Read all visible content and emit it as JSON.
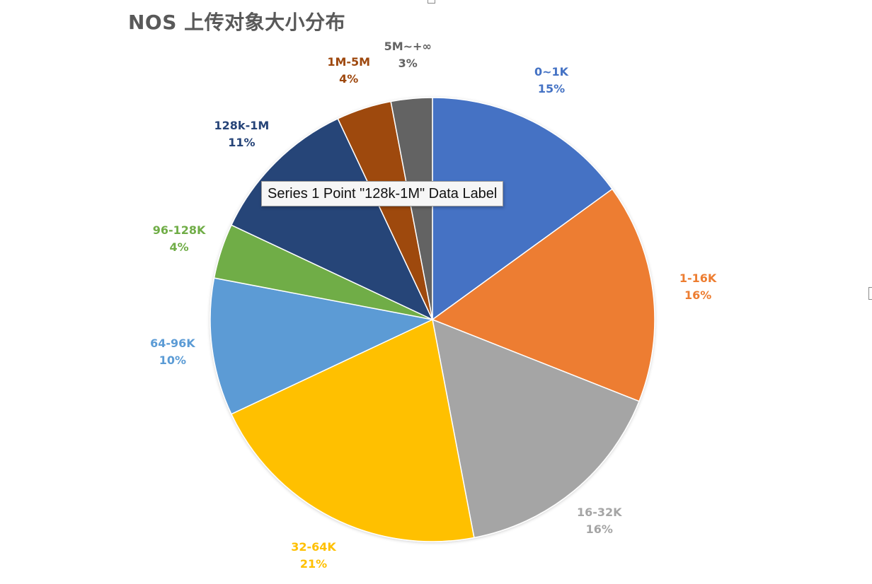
{
  "chart_data": {
    "type": "pie",
    "title": "NOS 上传对象大小分布",
    "series_name": "Series 1",
    "slices": [
      {
        "label": "0~1K",
        "value": 15,
        "display": "15%",
        "color": "#4472C4"
      },
      {
        "label": "1-16K",
        "value": 16,
        "display": "16%",
        "color": "#ED7D31"
      },
      {
        "label": "16-32K",
        "value": 16,
        "display": "16%",
        "color": "#A5A5A5"
      },
      {
        "label": "32-64K",
        "value": 21,
        "display": "21%",
        "color": "#FFC000"
      },
      {
        "label": "64-96K",
        "value": 10,
        "display": "10%",
        "color": "#5B9BD5"
      },
      {
        "label": "96-128K",
        "value": 4,
        "display": "4%",
        "color": "#70AD47"
      },
      {
        "label": "128k-1M",
        "value": 11,
        "display": "11%",
        "color": "#264478"
      },
      {
        "label": "1M-5M",
        "value": 4,
        "display": "4%",
        "color": "#9E480E"
      },
      {
        "label": "5M~+∞",
        "value": 3,
        "display": "3%",
        "color": "#636363"
      }
    ],
    "legend": "none",
    "start_angle": "12 o'clock, clockwise"
  },
  "tooltip": {
    "text": "Series 1 Point \"128k-1M\" Data Label"
  }
}
